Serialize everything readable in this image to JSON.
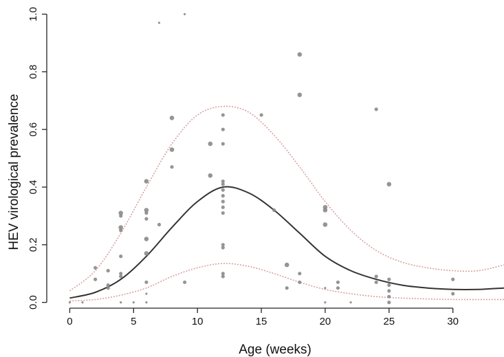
{
  "chart_data": {
    "type": "scatter",
    "title": "",
    "xlabel": "Age (weeks)",
    "ylabel": "HEV virological prevalence",
    "xlim": [
      -1.8,
      34
    ],
    "ylim": [
      -0.02,
      1.03
    ],
    "xticks": [
      0,
      5,
      10,
      15,
      20,
      25,
      30
    ],
    "xtick_labels": [
      "0",
      "5",
      "10",
      "15",
      "20",
      "25",
      "30"
    ],
    "yticks": [
      0.0,
      0.2,
      0.4,
      0.6,
      0.8,
      1.0
    ],
    "ytick_labels": [
      "0.0",
      "0.2",
      "0.4",
      "0.6",
      "0.8",
      "1.0"
    ],
    "grid": false,
    "legend": "none",
    "colors": {
      "points": "#8a8a8a",
      "fit": "#333333",
      "ci": "#d9a0a0",
      "axis": "#222222"
    },
    "points": [
      {
        "x": 0,
        "y": 0.0,
        "s": "small"
      },
      {
        "x": 1,
        "y": 0.0,
        "s": "small"
      },
      {
        "x": 2,
        "y": 0.12,
        "s": "medium"
      },
      {
        "x": 2,
        "y": 0.08,
        "s": "medium"
      },
      {
        "x": 3,
        "y": 0.11,
        "s": "medium"
      },
      {
        "x": 3,
        "y": 0.06,
        "s": "medium"
      },
      {
        "x": 3,
        "y": 0.05,
        "s": "medium"
      },
      {
        "x": 4,
        "y": 0.31,
        "s": "large"
      },
      {
        "x": 4,
        "y": 0.3,
        "s": "medium"
      },
      {
        "x": 4,
        "y": 0.26,
        "s": "large"
      },
      {
        "x": 4,
        "y": 0.25,
        "s": "medium"
      },
      {
        "x": 4,
        "y": 0.16,
        "s": "medium"
      },
      {
        "x": 4,
        "y": 0.1,
        "s": "medium"
      },
      {
        "x": 4,
        "y": 0.09,
        "s": "medium"
      },
      {
        "x": 4,
        "y": 0.0,
        "s": "small"
      },
      {
        "x": 5,
        "y": 0.0,
        "s": "small"
      },
      {
        "x": 6,
        "y": 0.42,
        "s": "large"
      },
      {
        "x": 6,
        "y": 0.32,
        "s": "large"
      },
      {
        "x": 6,
        "y": 0.31,
        "s": "medium"
      },
      {
        "x": 6,
        "y": 0.29,
        "s": "medium"
      },
      {
        "x": 6,
        "y": 0.22,
        "s": "large"
      },
      {
        "x": 6,
        "y": 0.17,
        "s": "large"
      },
      {
        "x": 6,
        "y": 0.07,
        "s": "medium"
      },
      {
        "x": 6,
        "y": 0.03,
        "s": "small"
      },
      {
        "x": 6,
        "y": 0.0,
        "s": "small"
      },
      {
        "x": 7,
        "y": 0.97,
        "s": "small"
      },
      {
        "x": 7,
        "y": 0.27,
        "s": "medium"
      },
      {
        "x": 8,
        "y": 0.64,
        "s": "large"
      },
      {
        "x": 8,
        "y": 0.53,
        "s": "large"
      },
      {
        "x": 8,
        "y": 0.47,
        "s": "medium"
      },
      {
        "x": 9,
        "y": 1.0,
        "s": "small"
      },
      {
        "x": 9,
        "y": 0.07,
        "s": "medium"
      },
      {
        "x": 11,
        "y": 0.55,
        "s": "large"
      },
      {
        "x": 11,
        "y": 0.44,
        "s": "large"
      },
      {
        "x": 12,
        "y": 0.65,
        "s": "medium"
      },
      {
        "x": 12,
        "y": 0.6,
        "s": "medium"
      },
      {
        "x": 12,
        "y": 0.55,
        "s": "medium"
      },
      {
        "x": 12,
        "y": 0.42,
        "s": "medium"
      },
      {
        "x": 12,
        "y": 0.41,
        "s": "medium"
      },
      {
        "x": 12,
        "y": 0.39,
        "s": "medium"
      },
      {
        "x": 12,
        "y": 0.37,
        "s": "medium"
      },
      {
        "x": 12,
        "y": 0.35,
        "s": "medium"
      },
      {
        "x": 12,
        "y": 0.33,
        "s": "medium"
      },
      {
        "x": 12,
        "y": 0.31,
        "s": "medium"
      },
      {
        "x": 12,
        "y": 0.2,
        "s": "medium"
      },
      {
        "x": 12,
        "y": 0.19,
        "s": "medium"
      },
      {
        "x": 12,
        "y": 0.1,
        "s": "medium"
      },
      {
        "x": 12,
        "y": 0.09,
        "s": "medium"
      },
      {
        "x": 15,
        "y": 0.65,
        "s": "medium"
      },
      {
        "x": 16,
        "y": 0.32,
        "s": "medium"
      },
      {
        "x": 17,
        "y": 0.13,
        "s": "large"
      },
      {
        "x": 17,
        "y": 0.05,
        "s": "medium"
      },
      {
        "x": 18,
        "y": 0.86,
        "s": "large"
      },
      {
        "x": 18,
        "y": 0.72,
        "s": "large"
      },
      {
        "x": 18,
        "y": 0.1,
        "s": "medium"
      },
      {
        "x": 18,
        "y": 0.07,
        "s": "medium"
      },
      {
        "x": 20,
        "y": 0.33,
        "s": "large"
      },
      {
        "x": 20,
        "y": 0.32,
        "s": "large"
      },
      {
        "x": 20,
        "y": 0.27,
        "s": "large"
      },
      {
        "x": 20,
        "y": 0.05,
        "s": "small"
      },
      {
        "x": 20,
        "y": 0.0,
        "s": "small"
      },
      {
        "x": 21,
        "y": 0.07,
        "s": "medium"
      },
      {
        "x": 21,
        "y": 0.05,
        "s": "medium"
      },
      {
        "x": 22,
        "y": 0.0,
        "s": "small"
      },
      {
        "x": 24,
        "y": 0.67,
        "s": "medium"
      },
      {
        "x": 24,
        "y": 0.09,
        "s": "medium"
      },
      {
        "x": 24,
        "y": 0.07,
        "s": "medium"
      },
      {
        "x": 25,
        "y": 0.41,
        "s": "large"
      },
      {
        "x": 25,
        "y": 0.08,
        "s": "medium"
      },
      {
        "x": 25,
        "y": 0.06,
        "s": "medium"
      },
      {
        "x": 25,
        "y": 0.04,
        "s": "medium"
      },
      {
        "x": 25,
        "y": 0.02,
        "s": "medium"
      },
      {
        "x": 25,
        "y": 0.0,
        "s": "medium"
      },
      {
        "x": 30,
        "y": 0.08,
        "s": "medium"
      },
      {
        "x": 30,
        "y": 0.03,
        "s": "medium"
      }
    ],
    "series": [
      {
        "kind": "fit",
        "x": [
          0,
          2,
          4,
          6,
          8,
          10,
          12,
          14,
          16,
          18,
          20,
          22,
          24,
          26,
          28,
          30,
          32,
          34
        ],
        "y": [
          0.015,
          0.035,
          0.08,
          0.16,
          0.26,
          0.35,
          0.4,
          0.38,
          0.32,
          0.24,
          0.16,
          0.11,
          0.08,
          0.06,
          0.05,
          0.045,
          0.045,
          0.05
        ]
      },
      {
        "kind": "ci-upper",
        "x": [
          0,
          2,
          4,
          6,
          8,
          10,
          12,
          14,
          16,
          18,
          20,
          22,
          24,
          26,
          28,
          30,
          32,
          34
        ],
        "y": [
          0.04,
          0.11,
          0.24,
          0.4,
          0.55,
          0.65,
          0.68,
          0.66,
          0.58,
          0.47,
          0.35,
          0.25,
          0.18,
          0.14,
          0.12,
          0.11,
          0.11,
          0.13
        ]
      },
      {
        "kind": "ci-lower",
        "x": [
          0,
          2,
          4,
          6,
          8,
          10,
          12,
          14,
          16,
          18,
          20,
          22,
          24,
          26,
          28,
          30,
          32,
          34
        ],
        "y": [
          0.005,
          0.01,
          0.025,
          0.05,
          0.09,
          0.12,
          0.135,
          0.125,
          0.1,
          0.07,
          0.045,
          0.03,
          0.02,
          0.015,
          0.012,
          0.01,
          0.01,
          0.01
        ]
      }
    ]
  }
}
